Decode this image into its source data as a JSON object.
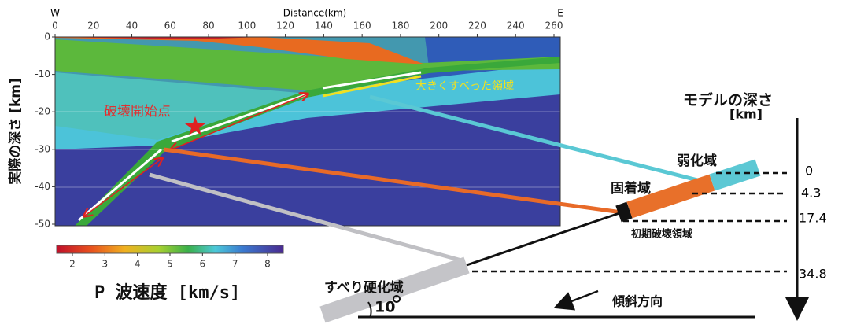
{
  "cross_section": {
    "x_axis_title": "Distance(km)",
    "west": "W",
    "east": "E",
    "x_ticks": [
      0,
      20,
      40,
      60,
      80,
      100,
      120,
      140,
      160,
      180,
      200,
      220,
      240,
      260
    ],
    "y_ticks": [
      0,
      -10,
      -20,
      -30,
      -40,
      -50
    ],
    "y_axis_title": "実際の深さ [km]",
    "rupture_start": "破壊開始点",
    "large_slip": "大きくすべった領域"
  },
  "colorbar": {
    "ticks": [
      2,
      3,
      4,
      5,
      6,
      7,
      8
    ],
    "title": "P 波速度 [km/s]"
  },
  "model": {
    "title": "モデルの深さ",
    "unit": "[km]",
    "depths": [
      0,
      4.3,
      17.4,
      34.8
    ],
    "weakening": "弱化域",
    "locked": "固着域",
    "initial_rupture": "初期破壊領域",
    "hardening": "すべり硬化域",
    "dip": 10,
    "dip_direction": "傾斜方向"
  }
}
